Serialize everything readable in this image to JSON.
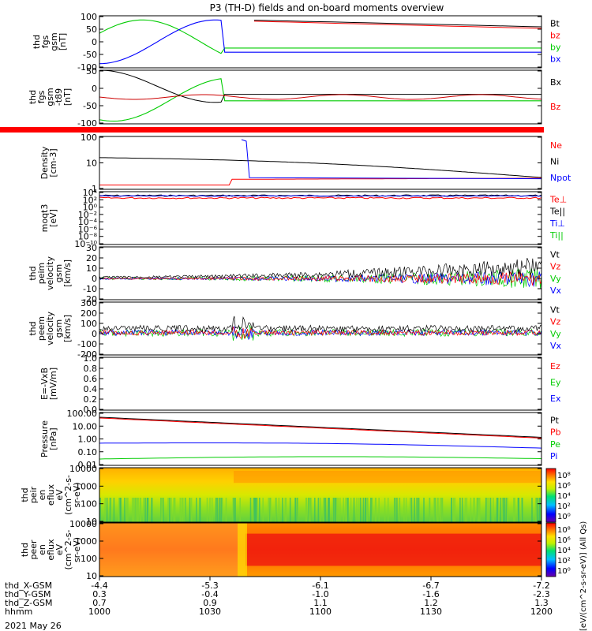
{
  "title": "P3 (TH-D) fields and on-board moments overview",
  "date_label": "2021 May 26",
  "chart_data": [
    {
      "type": "line",
      "panel_label": [
        "thd",
        "fgs",
        "gsm",
        "[nT]"
      ],
      "ylim": [
        -100,
        100
      ],
      "yticks": [
        "100",
        "50",
        "0",
        "-50",
        "-100"
      ],
      "legend": [
        {
          "name": "Bt",
          "color": "#000000"
        },
        {
          "name": "bz",
          "color": "#ff0000"
        },
        {
          "name": "by",
          "color": "#00cc00"
        },
        {
          "name": "bx",
          "color": "#0000ff"
        }
      ]
    },
    {
      "type": "line",
      "panel_label": [
        "thd",
        "fgs",
        "gsm",
        "-t89",
        "[nT]"
      ],
      "ylim": [
        -125,
        85
      ],
      "yticks": [
        "50",
        "0",
        "-50",
        "-100"
      ],
      "legend": [
        {
          "name": "Bx",
          "color": "#000000"
        },
        {
          "name": "Bz",
          "color": "#ff0000"
        }
      ]
    },
    {
      "type": "line",
      "panel_label": [
        "Density",
        "[cm-3]"
      ],
      "yscale": "log",
      "ylim": [
        0.3,
        200
      ],
      "yticks": [
        "100",
        "10",
        "1"
      ],
      "legend": [
        {
          "name": "Ne",
          "color": "#ff0000"
        },
        {
          "name": "Ni",
          "color": "#000000"
        },
        {
          "name": "Npot",
          "color": "#0000ff"
        }
      ]
    },
    {
      "type": "line",
      "panel_label": [
        "moqt3",
        "[eV]"
      ],
      "yscale": "log",
      "yticks": [
        "10⁴",
        "10²",
        "10⁰",
        "10⁻²",
        "10⁻⁴",
        "10⁻⁶",
        "10⁻⁸",
        "10⁻¹⁰"
      ],
      "legend": [
        {
          "name": "Te⊥",
          "color": "#ff0000"
        },
        {
          "name": "Te||",
          "color": "#000000"
        },
        {
          "name": "Ti⊥",
          "color": "#0000ff"
        },
        {
          "name": "Ti||",
          "color": "#00cc00"
        }
      ]
    },
    {
      "type": "line",
      "panel_label": [
        "thd",
        "peim",
        "velocity",
        "gsm",
        "[km/s]"
      ],
      "ylim": [
        -20,
        30
      ],
      "yticks": [
        "30",
        "20",
        "10",
        "0",
        "-10",
        "-20"
      ],
      "legend": [
        {
          "name": "Vt",
          "color": "#000000"
        },
        {
          "name": "Vz",
          "color": "#ff0000"
        },
        {
          "name": "Vy",
          "color": "#00cc00"
        },
        {
          "name": "Vx",
          "color": "#0000ff"
        }
      ]
    },
    {
      "type": "line",
      "panel_label": [
        "thd",
        "peem",
        "velocity",
        "gsm",
        "[km/s]"
      ],
      "ylim": [
        -200,
        300
      ],
      "yticks": [
        "300",
        "200",
        "100",
        "0",
        "-100",
        "-200"
      ],
      "legend": [
        {
          "name": "Vt",
          "color": "#000000"
        },
        {
          "name": "Vz",
          "color": "#ff0000"
        },
        {
          "name": "Vy",
          "color": "#00cc00"
        },
        {
          "name": "Vx",
          "color": "#0000ff"
        }
      ]
    },
    {
      "type": "line",
      "panel_label": [
        "E=-VxB",
        "[mV/m]"
      ],
      "ylim": [
        0,
        1
      ],
      "yticks": [
        "1.0",
        "0.8",
        "0.6",
        "0.4",
        "0.2",
        "0.0"
      ],
      "legend": [
        {
          "name": "Ez",
          "color": "#ff0000"
        },
        {
          "name": "Ey",
          "color": "#00cc00"
        },
        {
          "name": "Ex",
          "color": "#0000ff"
        }
      ]
    },
    {
      "type": "line",
      "panel_label": [
        "Pressure",
        "[nPa]"
      ],
      "yscale": "log",
      "ylim": [
        0.01,
        100
      ],
      "yticks": [
        "100.00",
        "10.00",
        "1.00",
        "0.10",
        "0.01"
      ],
      "legend": [
        {
          "name": "Pt",
          "color": "#000000"
        },
        {
          "name": "Pb",
          "color": "#ff0000"
        },
        {
          "name": "Pe",
          "color": "#00cc00"
        },
        {
          "name": "Pi",
          "color": "#0000ff"
        }
      ]
    },
    {
      "type": "heatmap",
      "panel_label": [
        "thd",
        "peir",
        "en",
        "eflux",
        "eV",
        "(cm^2-s-",
        "sr-eV)"
      ],
      "yscale": "log",
      "yticks": [
        "10000",
        "1000",
        "100",
        "10"
      ]
    },
    {
      "type": "heatmap",
      "panel_label": [
        "thd",
        "peer",
        "en",
        "eflux",
        "eV",
        "(cm^2-s-",
        "sr-eV)"
      ],
      "yscale": "log",
      "yticks": [
        "10000",
        "1000",
        "100",
        "10"
      ]
    }
  ],
  "colorbar": {
    "label": "[eV/(cm^2-s-sr-eV)] (All Qs)",
    "ticks": [
      "10⁸",
      "10⁶",
      "10⁴",
      "10²",
      "10⁰"
    ]
  },
  "x_axis": {
    "rows": [
      {
        "label": "thd_X-GSM",
        "values": [
          "-4.4",
          "-5.3",
          "-6.1",
          "-6.7",
          "-7.2"
        ]
      },
      {
        "label": "thd_Y-GSM",
        "values": [
          "0.3",
          "-0.4",
          "-1.0",
          "-1.6",
          "-2.3"
        ]
      },
      {
        "label": "thd_Z-GSM",
        "values": [
          "0.7",
          "0.9",
          "1.1",
          "1.2",
          "1.3"
        ]
      },
      {
        "label": "hhmm",
        "values": [
          "1000",
          "1030",
          "1100",
          "1130",
          "1200"
        ]
      }
    ]
  }
}
